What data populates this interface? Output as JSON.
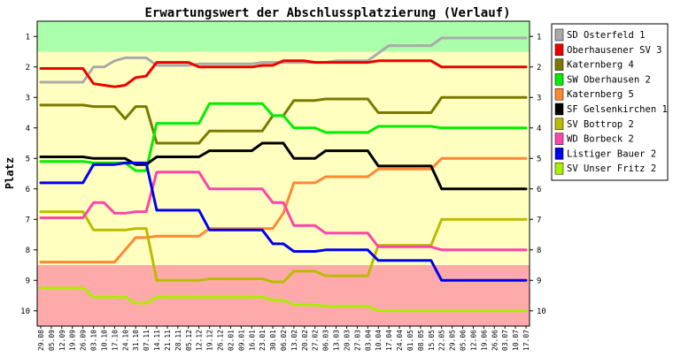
{
  "chart_data": {
    "type": "line",
    "title": "Erwartungswert der Abschlussplatzierung (Verlauf)",
    "xlabel": "",
    "ylabel": "Platz",
    "ylim": [
      0.5,
      10.5
    ],
    "y_inverted": true,
    "yticks": [
      1,
      2,
      3,
      4,
      5,
      6,
      7,
      8,
      9,
      10
    ],
    "grid": false,
    "legend_position": "right",
    "zones": [
      {
        "from": 0.5,
        "to": 1.5,
        "color": "#aaffaa"
      },
      {
        "from": 1.5,
        "to": 8.5,
        "color": "#ffffc0"
      },
      {
        "from": 8.5,
        "to": 10.5,
        "color": "#ffaaaa"
      }
    ],
    "x": [
      "29.08",
      "05.09",
      "12.09",
      "19.09",
      "26.09",
      "03.10",
      "10.10",
      "17.10",
      "24.10",
      "31.10",
      "07.11",
      "14.11",
      "21.11",
      "28.11",
      "05.12",
      "12.12",
      "19.12",
      "26.12",
      "02.01",
      "09.01",
      "16.01",
      "23.01",
      "30.01",
      "06.02",
      "13.02",
      "20.02",
      "27.02",
      "06.03",
      "13.03",
      "20.03",
      "27.03",
      "03.04",
      "10.04",
      "17.04",
      "24.04",
      "01.05",
      "08.05",
      "15.05",
      "22.05",
      "29.05",
      "05.06",
      "12.06",
      "19.06",
      "26.06",
      "03.07",
      "10.07",
      "17.07"
    ],
    "series": [
      {
        "name": "SD Osterfeld 1",
        "color": "#aaaaaa",
        "values": [
          2.5,
          2.5,
          2.5,
          2.5,
          2.5,
          2.0,
          2.0,
          1.8,
          1.7,
          1.7,
          1.7,
          1.95,
          1.95,
          1.95,
          1.95,
          1.9,
          1.9,
          1.9,
          1.9,
          1.9,
          1.9,
          1.85,
          1.85,
          1.85,
          1.85,
          1.85,
          1.85,
          1.85,
          1.8,
          1.8,
          1.8,
          1.8,
          1.55,
          1.3,
          1.3,
          1.3,
          1.3,
          1.3,
          1.05,
          1.05,
          1.05,
          1.05,
          1.05,
          1.05,
          1.05,
          1.05,
          1.05
        ]
      },
      {
        "name": "Oberhausener SV 3",
        "color": "#ee0000",
        "values": [
          2.05,
          2.05,
          2.05,
          2.05,
          2.05,
          2.55,
          2.6,
          2.65,
          2.6,
          2.35,
          2.3,
          1.85,
          1.85,
          1.85,
          1.85,
          2.0,
          2.0,
          2.0,
          2.0,
          2.0,
          2.0,
          1.95,
          1.95,
          1.8,
          1.8,
          1.8,
          1.85,
          1.85,
          1.85,
          1.85,
          1.85,
          1.85,
          1.8,
          1.8,
          1.8,
          1.8,
          1.8,
          1.8,
          2.0,
          2.0,
          2.0,
          2.0,
          2.0,
          2.0,
          2.0,
          2.0,
          2.0
        ]
      },
      {
        "name": "Katernberg 4",
        "color": "#7a7a00",
        "values": [
          3.25,
          3.25,
          3.25,
          3.25,
          3.25,
          3.3,
          3.3,
          3.3,
          3.7,
          3.3,
          3.3,
          4.5,
          4.5,
          4.5,
          4.5,
          4.5,
          4.1,
          4.1,
          4.1,
          4.1,
          4.1,
          4.1,
          3.6,
          3.6,
          3.1,
          3.1,
          3.1,
          3.05,
          3.05,
          3.05,
          3.05,
          3.05,
          3.5,
          3.5,
          3.5,
          3.5,
          3.5,
          3.5,
          3.0,
          3.0,
          3.0,
          3.0,
          3.0,
          3.0,
          3.0,
          3.0,
          3.0
        ]
      },
      {
        "name": "SW Oberhausen 2",
        "color": "#00ee00",
        "values": [
          5.1,
          5.1,
          5.1,
          5.1,
          5.1,
          5.15,
          5.15,
          5.15,
          5.15,
          5.4,
          5.4,
          3.85,
          3.85,
          3.85,
          3.85,
          3.85,
          3.2,
          3.2,
          3.2,
          3.2,
          3.2,
          3.2,
          3.6,
          3.6,
          4.0,
          4.0,
          4.0,
          4.15,
          4.15,
          4.15,
          4.15,
          4.15,
          3.95,
          3.95,
          3.95,
          3.95,
          3.95,
          3.95,
          4.0,
          4.0,
          4.0,
          4.0,
          4.0,
          4.0,
          4.0,
          4.0,
          4.0
        ]
      },
      {
        "name": "Katernberg 5",
        "color": "#ff8833",
        "values": [
          8.4,
          8.4,
          8.4,
          8.4,
          8.4,
          8.4,
          8.4,
          8.4,
          8.0,
          7.6,
          7.6,
          7.55,
          7.55,
          7.55,
          7.55,
          7.55,
          7.3,
          7.3,
          7.3,
          7.3,
          7.3,
          7.3,
          7.3,
          6.8,
          5.8,
          5.8,
          5.8,
          5.6,
          5.6,
          5.6,
          5.6,
          5.6,
          5.35,
          5.35,
          5.35,
          5.35,
          5.35,
          5.35,
          5.0,
          5.0,
          5.0,
          5.0,
          5.0,
          5.0,
          5.0,
          5.0,
          5.0
        ]
      },
      {
        "name": "SF Gelsenkirchen 1",
        "color": "#000000",
        "values": [
          4.95,
          4.95,
          4.95,
          4.95,
          4.95,
          5.0,
          5.0,
          5.0,
          5.0,
          5.2,
          5.2,
          4.95,
          4.95,
          4.95,
          4.95,
          4.95,
          4.75,
          4.75,
          4.75,
          4.75,
          4.75,
          4.5,
          4.5,
          4.5,
          5.0,
          5.0,
          5.0,
          4.75,
          4.75,
          4.75,
          4.75,
          4.75,
          5.25,
          5.25,
          5.25,
          5.25,
          5.25,
          5.25,
          6.0,
          6.0,
          6.0,
          6.0,
          6.0,
          6.0,
          6.0,
          6.0,
          6.0
        ]
      },
      {
        "name": "SV Bottrop 2",
        "color": "#bbbb00",
        "values": [
          6.75,
          6.75,
          6.75,
          6.75,
          6.75,
          7.35,
          7.35,
          7.35,
          7.35,
          7.3,
          7.3,
          9.0,
          9.0,
          9.0,
          9.0,
          9.0,
          8.95,
          8.95,
          8.95,
          8.95,
          8.95,
          8.95,
          9.05,
          9.05,
          8.7,
          8.7,
          8.7,
          8.85,
          8.85,
          8.85,
          8.85,
          8.85,
          7.85,
          7.85,
          7.85,
          7.85,
          7.85,
          7.85,
          7.0,
          7.0,
          7.0,
          7.0,
          7.0,
          7.0,
          7.0,
          7.0,
          7.0
        ]
      },
      {
        "name": "WD Borbeck 2",
        "color": "#ff44aa",
        "values": [
          6.95,
          6.95,
          6.95,
          6.95,
          6.95,
          6.45,
          6.45,
          6.8,
          6.8,
          6.75,
          6.75,
          5.45,
          5.45,
          5.45,
          5.45,
          5.45,
          6.0,
          6.0,
          6.0,
          6.0,
          6.0,
          6.0,
          6.45,
          6.45,
          7.2,
          7.2,
          7.2,
          7.45,
          7.45,
          7.45,
          7.45,
          7.45,
          7.9,
          7.9,
          7.9,
          7.9,
          7.9,
          7.9,
          8.0,
          8.0,
          8.0,
          8.0,
          8.0,
          8.0,
          8.0,
          8.0,
          8.0
        ]
      },
      {
        "name": "Listiger Bauer 2",
        "color": "#0000ee",
        "values": [
          5.8,
          5.8,
          5.8,
          5.8,
          5.8,
          5.2,
          5.2,
          5.2,
          5.15,
          5.15,
          5.15,
          6.7,
          6.7,
          6.7,
          6.7,
          6.7,
          7.35,
          7.35,
          7.35,
          7.35,
          7.35,
          7.35,
          7.8,
          7.8,
          8.05,
          8.05,
          8.05,
          8.0,
          8.0,
          8.0,
          8.0,
          8.0,
          8.35,
          8.35,
          8.35,
          8.35,
          8.35,
          8.35,
          9.0,
          9.0,
          9.0,
          9.0,
          9.0,
          9.0,
          9.0,
          9.0,
          9.0
        ]
      },
      {
        "name": "SV Unser Fritz 2",
        "color": "#aaee00",
        "values": [
          9.25,
          9.25,
          9.25,
          9.25,
          9.25,
          9.55,
          9.55,
          9.55,
          9.55,
          9.75,
          9.75,
          9.55,
          9.55,
          9.55,
          9.55,
          9.55,
          9.55,
          9.55,
          9.55,
          9.55,
          9.55,
          9.55,
          9.65,
          9.65,
          9.8,
          9.8,
          9.8,
          9.85,
          9.85,
          9.85,
          9.85,
          9.85,
          10.0,
          10.0,
          10.0,
          10.0,
          10.0,
          10.0,
          10.0,
          10.0,
          10.0,
          10.0,
          10.0,
          10.0,
          10.0,
          10.0,
          10.0
        ]
      }
    ]
  }
}
